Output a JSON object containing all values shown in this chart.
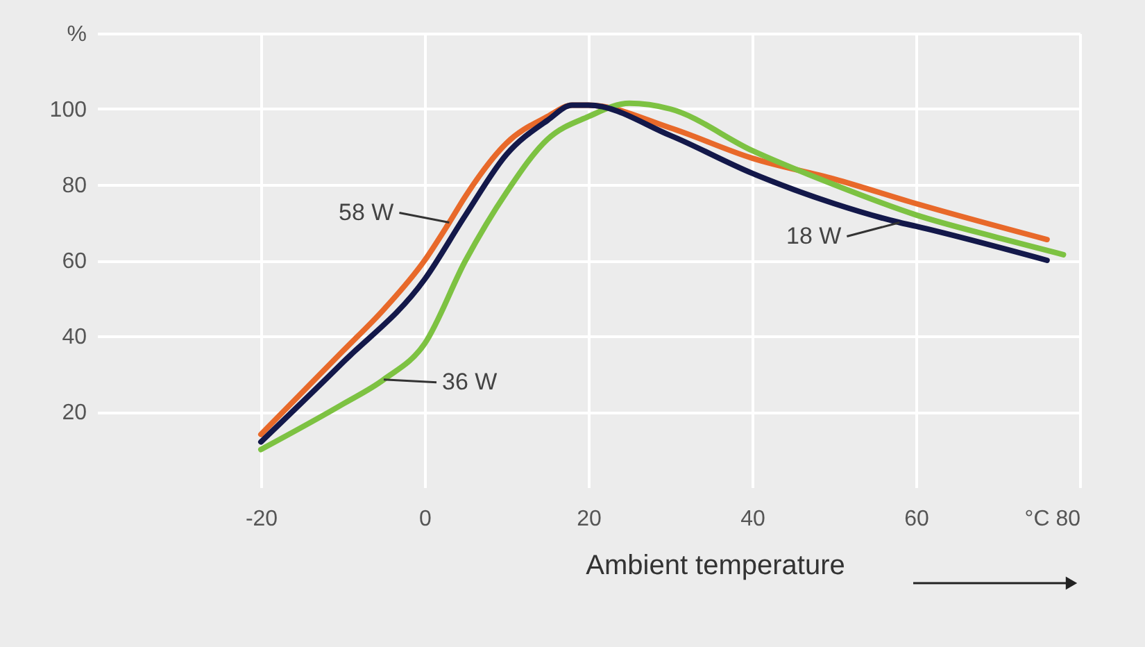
{
  "chart_data": {
    "type": "line",
    "xlabel": "Ambient temperature",
    "xlim": [
      -40,
      80
    ],
    "xticks": [
      -20,
      0,
      20,
      40,
      60,
      {
        "value": 80,
        "label": "°C 80"
      }
    ],
    "ylim": [
      0,
      120
    ],
    "yticks": [
      20,
      40,
      60,
      80,
      100,
      {
        "value": 120,
        "label": "%"
      }
    ],
    "grid": true,
    "marker": "none",
    "line_style": "solid",
    "series": [
      {
        "name": "58 W",
        "color": "#e8692a",
        "x": [
          -20,
          -10,
          -5,
          0,
          3,
          5,
          10,
          15,
          18,
          20,
          30,
          40,
          50,
          60,
          76
        ],
        "values": [
          14,
          36,
          47,
          60,
          70,
          77,
          91,
          98,
          101,
          101,
          95,
          87,
          81.5,
          75,
          65.5
        ]
      },
      {
        "name": "36 W",
        "color": "#7dc242",
        "x": [
          -20,
          -10,
          -5,
          0,
          5,
          10,
          15,
          20,
          25,
          30,
          40,
          50,
          60,
          70,
          78
        ],
        "values": [
          10,
          22,
          28.5,
          38,
          60,
          78,
          92,
          98,
          101.5,
          100,
          89,
          80,
          72,
          66,
          61.5
        ]
      },
      {
        "name": "18 W",
        "color": "#13184a",
        "x": [
          -20,
          -10,
          0,
          5,
          10,
          15,
          18,
          20,
          30,
          40,
          50,
          58,
          60,
          76
        ],
        "values": [
          12,
          33,
          55,
          72,
          88,
          97,
          101,
          101,
          93,
          83,
          75,
          70,
          69,
          60
        ]
      }
    ]
  }
}
